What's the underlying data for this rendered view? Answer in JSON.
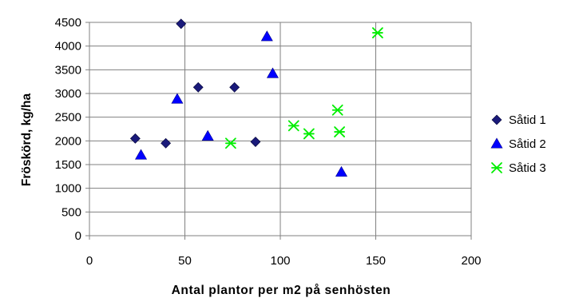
{
  "chart_data": {
    "type": "scatter",
    "xlabel": "Antal plantor per m2 på senhösten",
    "ylabel": "Fröskörd, kg/ha",
    "xlim": [
      0,
      200
    ],
    "ylim": [
      0,
      4500
    ],
    "xticks": [
      0,
      50,
      100,
      150,
      200
    ],
    "yticks": [
      0,
      500,
      1000,
      1500,
      2000,
      2500,
      3000,
      3500,
      4000,
      4500
    ],
    "grid": {
      "horizontal": true,
      "vertical": true
    },
    "legend_position": "right",
    "series": [
      {
        "name": "Såtid 1",
        "marker": "diamond",
        "color": "#1a1a7a",
        "points": [
          [
            24,
            2050
          ],
          [
            40,
            1950
          ],
          [
            48,
            4470
          ],
          [
            57,
            3130
          ],
          [
            76,
            3130
          ],
          [
            87,
            1980
          ]
        ]
      },
      {
        "name": "Såtid 2",
        "marker": "triangle",
        "color": "#0000ff",
        "points": [
          [
            27,
            1700
          ],
          [
            46,
            2880
          ],
          [
            62,
            2100
          ],
          [
            93,
            4200
          ],
          [
            96,
            3420
          ],
          [
            132,
            1340
          ]
        ]
      },
      {
        "name": "Såtid 3",
        "marker": "asterisk",
        "color": "#00ee00",
        "points": [
          [
            74,
            1950
          ],
          [
            107,
            2320
          ],
          [
            115,
            2150
          ],
          [
            130,
            2650
          ],
          [
            131,
            2190
          ],
          [
            151,
            4280
          ]
        ]
      }
    ]
  }
}
